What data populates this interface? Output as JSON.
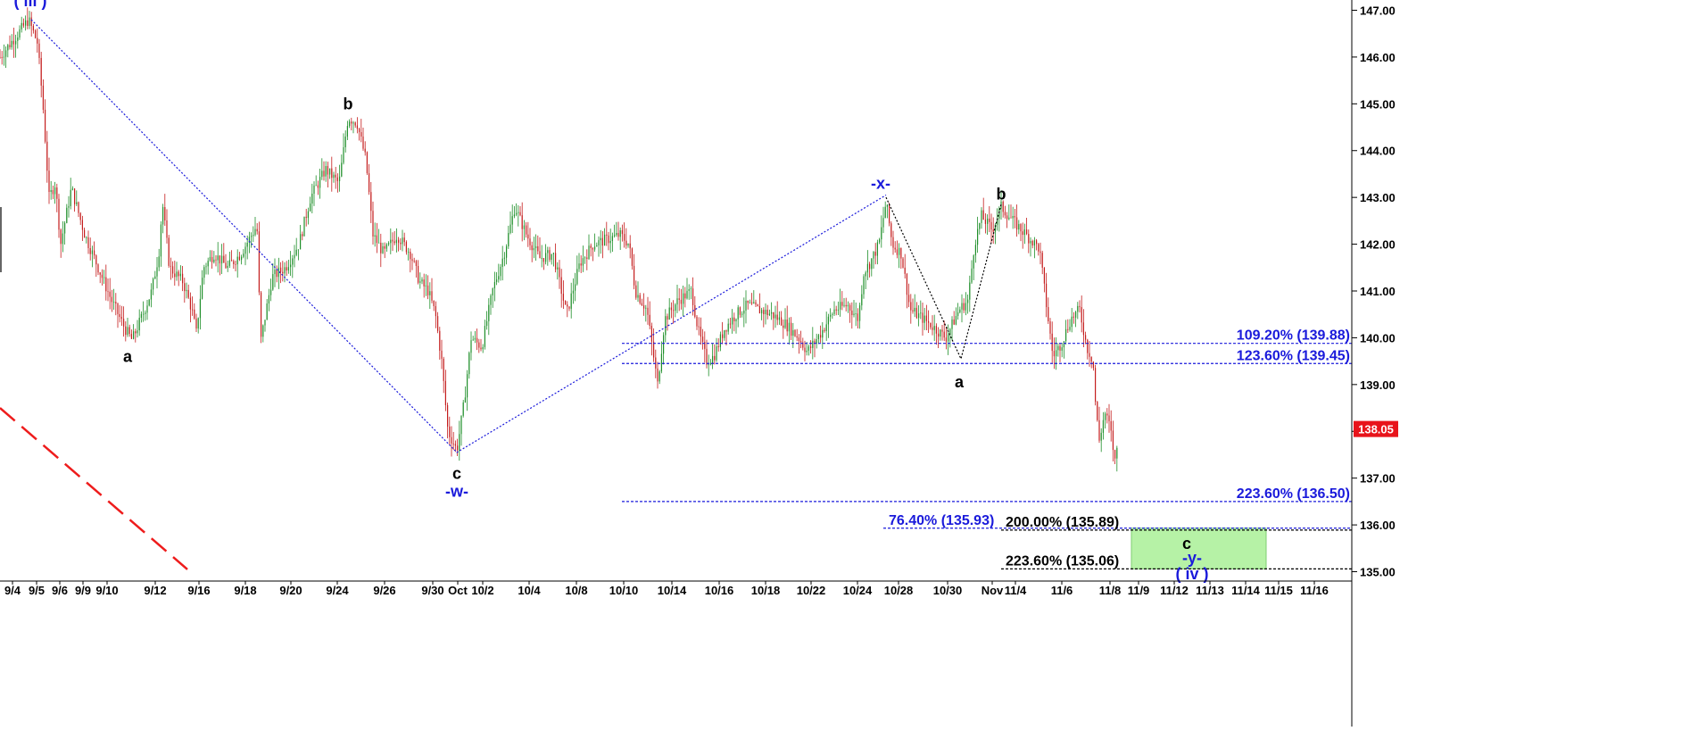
{
  "chart_data": {
    "type": "candlestick",
    "y_axis": {
      "min": 134.8,
      "max": 147.2,
      "ticks": [
        "135.00",
        "136.00",
        "137.00",
        "138.00",
        "139.00",
        "140.00",
        "141.00",
        "142.00",
        "143.00",
        "144.00",
        "145.00",
        "146.00",
        "147.00"
      ]
    },
    "x_labels": [
      "9/4",
      "9/5",
      "9/6",
      "9/9",
      "9/10",
      "9/12",
      "9/16",
      "9/18",
      "9/20",
      "9/24",
      "9/26",
      "9/30",
      "Oct",
      "10/2",
      "10/4",
      "10/8",
      "10/10",
      "10/14",
      "10/16",
      "10/18",
      "10/22",
      "10/24",
      "10/28",
      "10/30",
      "Nov",
      "11/4",
      "11/6",
      "11/8",
      "11/9",
      "11/12",
      "11/13",
      "11/14",
      "11/15",
      "11/16"
    ],
    "last_price": {
      "label": "138.05",
      "value": 138.05,
      "color": "#e8141b"
    },
    "price_path": [
      [
        0,
        146.0
      ],
      [
        20,
        146.5
      ],
      [
        32,
        146.8
      ],
      [
        42,
        146.3
      ],
      [
        48,
        145.0
      ],
      [
        55,
        143.0
      ],
      [
        62,
        143.3
      ],
      [
        68,
        142.0
      ],
      [
        80,
        143.2
      ],
      [
        95,
        142.2
      ],
      [
        110,
        141.5
      ],
      [
        125,
        140.8
      ],
      [
        140,
        140.2
      ],
      [
        148,
        139.95
      ],
      [
        160,
        140.5
      ],
      [
        170,
        141.0
      ],
      [
        178,
        141.8
      ],
      [
        182,
        142.9
      ],
      [
        190,
        141.5
      ],
      [
        205,
        141.2
      ],
      [
        215,
        140.6
      ],
      [
        220,
        140.1
      ],
      [
        228,
        141.5
      ],
      [
        240,
        141.8
      ],
      [
        255,
        141.5
      ],
      [
        270,
        141.8
      ],
      [
        288,
        142.4
      ],
      [
        292,
        139.9
      ],
      [
        305,
        141.3
      ],
      [
        320,
        141.5
      ],
      [
        335,
        142.0
      ],
      [
        348,
        143.0
      ],
      [
        365,
        143.6
      ],
      [
        380,
        143.3
      ],
      [
        390,
        144.7
      ],
      [
        400,
        144.6
      ],
      [
        410,
        143.8
      ],
      [
        418,
        142.2
      ],
      [
        430,
        141.8
      ],
      [
        445,
        142.2
      ],
      [
        460,
        141.8
      ],
      [
        470,
        141.2
      ],
      [
        480,
        141.0
      ],
      [
        488,
        140.5
      ],
      [
        495,
        139.5
      ],
      [
        502,
        138.0
      ],
      [
        512,
        137.6
      ],
      [
        520,
        138.6
      ],
      [
        528,
        140.0
      ],
      [
        540,
        139.8
      ],
      [
        552,
        141.0
      ],
      [
        565,
        141.8
      ],
      [
        577,
        142.8
      ],
      [
        590,
        142.2
      ],
      [
        605,
        141.7
      ],
      [
        620,
        141.8
      ],
      [
        635,
        140.5
      ],
      [
        650,
        141.6
      ],
      [
        665,
        142.0
      ],
      [
        680,
        142.1
      ],
      [
        695,
        142.2
      ],
      [
        705,
        142.0
      ],
      [
        712,
        141.0
      ],
      [
        725,
        140.6
      ],
      [
        737,
        139.0
      ],
      [
        745,
        140.4
      ],
      [
        760,
        140.8
      ],
      [
        775,
        141.0
      ],
      [
        782,
        140.2
      ],
      [
        792,
        139.5
      ],
      [
        800,
        139.6
      ],
      [
        812,
        140.2
      ],
      [
        825,
        140.5
      ],
      [
        838,
        140.7
      ],
      [
        850,
        140.6
      ],
      [
        865,
        140.5
      ],
      [
        880,
        140.3
      ],
      [
        895,
        140.0
      ],
      [
        905,
        139.7
      ],
      [
        920,
        140.1
      ],
      [
        935,
        140.6
      ],
      [
        950,
        140.7
      ],
      [
        962,
        140.4
      ],
      [
        968,
        141.4
      ],
      [
        975,
        141.6
      ],
      [
        985,
        142.0
      ],
      [
        993,
        142.9
      ],
      [
        1000,
        142.0
      ],
      [
        1010,
        141.8
      ],
      [
        1020,
        140.6
      ],
      [
        1035,
        140.4
      ],
      [
        1048,
        140.2
      ],
      [
        1060,
        140.0
      ],
      [
        1075,
        140.6
      ],
      [
        1085,
        140.8
      ],
      [
        1092,
        142.0
      ],
      [
        1100,
        142.6
      ],
      [
        1112,
        142.3
      ],
      [
        1122,
        142.8
      ],
      [
        1135,
        142.5
      ],
      [
        1150,
        142.2
      ],
      [
        1165,
        141.9
      ],
      [
        1172,
        140.8
      ],
      [
        1180,
        139.6
      ],
      [
        1190,
        139.9
      ],
      [
        1200,
        140.4
      ],
      [
        1210,
        140.6
      ],
      [
        1218,
        139.8
      ],
      [
        1225,
        139.5
      ],
      [
        1228,
        138.5
      ],
      [
        1232,
        137.8
      ],
      [
        1238,
        138.4
      ],
      [
        1244,
        138.1
      ],
      [
        1250,
        137.3
      ],
      [
        1254,
        138.05
      ]
    ],
    "trend_lines": [
      {
        "color": "#1a1adb",
        "dash": "dotted",
        "points": [
          [
            35,
            146.8
          ],
          [
            512,
            137.55
          ],
          [
            993,
            143.05
          ]
        ]
      },
      {
        "color": "#000000",
        "dash": "dotted",
        "points": [
          [
            993,
            143.0
          ],
          [
            1077,
            139.55
          ],
          [
            1122,
            142.85
          ]
        ]
      }
    ],
    "red_dashed_line": {
      "color": "#ee1c1c",
      "points": [
        [
          0,
          138.5
        ],
        [
          210,
          135.05
        ]
      ]
    },
    "fib_lines": [
      {
        "value": 139.88,
        "x_start": 697,
        "x_end": 1515,
        "color": "#1a1adb",
        "label": "109.20% (139.88)",
        "label_color": "#1a1adb",
        "label_anchor": "end",
        "label_x": 1513
      },
      {
        "value": 139.45,
        "x_start": 697,
        "x_end": 1515,
        "color": "#1a1adb",
        "label": "123.60% (139.45)",
        "label_color": "#1a1adb",
        "label_anchor": "end",
        "label_x": 1513
      },
      {
        "value": 136.5,
        "x_start": 697,
        "x_end": 1515,
        "color": "#1a1adb",
        "label": "223.60% (136.50)",
        "label_color": "#1a1adb",
        "label_anchor": "end",
        "label_x": 1513
      },
      {
        "value": 135.93,
        "x_start": 990,
        "x_end": 1515,
        "color": "#1a1adb",
        "label": "76.40% (135.93)",
        "label_color": "#1a1adb",
        "label_anchor": "start",
        "label_x": 996
      },
      {
        "value": 135.89,
        "x_start": 1122,
        "x_end": 1515,
        "color": "#000000",
        "label": "200.00% (135.89)",
        "label_color": "#000000",
        "label_anchor": "start",
        "label_x": 1127
      },
      {
        "value": 135.06,
        "x_start": 1122,
        "x_end": 1515,
        "color": "#000000",
        "label": "223.60% (135.06)",
        "label_color": "#000000",
        "label_anchor": "start",
        "label_x": 1127
      }
    ],
    "target_box": {
      "x_start": 1268,
      "x_end": 1419,
      "y_top": 135.93,
      "y_bottom": 135.06,
      "color": "#b6f2a6"
    },
    "wave_labels": [
      {
        "text": "( iii )",
        "x": 34,
        "value": 147.2,
        "color": "#1a1adb"
      },
      {
        "text": "a",
        "x": 143,
        "value": 139.6,
        "color": "#000000"
      },
      {
        "text": "b",
        "x": 390,
        "value": 145.0,
        "color": "#000000"
      },
      {
        "text": "c",
        "x": 512,
        "value": 137.1,
        "color": "#000000"
      },
      {
        "text": "-w-",
        "x": 512,
        "value": 136.72,
        "color": "#1a1adb"
      },
      {
        "text": "-x-",
        "x": 987,
        "value": 143.3,
        "color": "#1a1adb"
      },
      {
        "text": "a",
        "x": 1075,
        "value": 139.05,
        "color": "#000000"
      },
      {
        "text": "b",
        "x": 1122,
        "value": 143.07,
        "color": "#000000"
      },
      {
        "text": "c",
        "x": 1330,
        "value": 135.6,
        "color": "#000000"
      },
      {
        "text": "-y-",
        "x": 1336,
        "value": 135.3,
        "color": "#1a1adb"
      },
      {
        "text": "( iv )",
        "x": 1336,
        "value": 134.95,
        "color": "#1a1adb"
      }
    ]
  }
}
